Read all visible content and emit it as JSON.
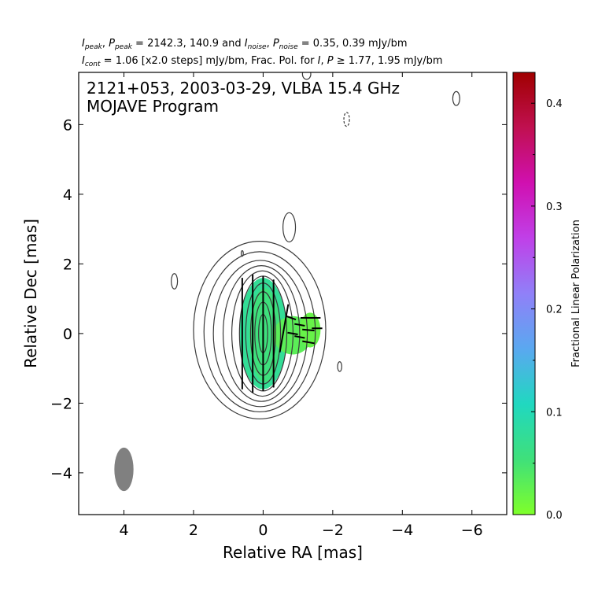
{
  "header": {
    "line1": {
      "i_peak_sym": "I",
      "i_peak_sub": "peak",
      "p_peak_sym": "P",
      "p_peak_sub": "peak",
      "peak_vals": " = 2142.3, 140.9 and ",
      "i_noise_sym": "I",
      "i_noise_sub": "noise",
      "p_noise_sym": "P",
      "p_noise_sub": "noise",
      "noise_vals": " = 0.35, 0.39 mJy/bm"
    },
    "line2": {
      "i_cont_sym": "I",
      "i_cont_sub": "cont",
      "cont_text": " = 1.06 [x2.0 steps] mJy/bm, Frac. Pol. for ",
      "i_sym": "I",
      "p_sym": "P",
      "thresh_text": " ≥  1.77, 1.95 mJy/bm"
    }
  },
  "chart_data": {
    "type": "contour",
    "title_lines": [
      "2121+053, 2003-03-29, VLBA 15.4 GHz",
      "MOJAVE Program"
    ],
    "xlabel": "Relative RA [mas]",
    "ylabel": "Relative Dec [mas]",
    "xlim": [
      5.3,
      -7.0
    ],
    "ylim": [
      -5.2,
      7.5
    ],
    "xticks": [
      4,
      2,
      0,
      -2,
      -4,
      -6
    ],
    "yticks": [
      -4,
      -2,
      0,
      2,
      4,
      6
    ],
    "xtick_labels": [
      "4",
      "2",
      "0",
      "−2",
      "−4",
      "−6"
    ],
    "ytick_labels": [
      "−4",
      "−2",
      "0",
      "2",
      "4",
      "6"
    ],
    "contour_color": "#3a3a3a",
    "contours": [
      {
        "cx": 0.1,
        "cy": 0.1,
        "rx": 1.9,
        "ry": 2.55
      },
      {
        "cx": 0.1,
        "cy": 0.05,
        "rx": 1.6,
        "ry": 2.3
      },
      {
        "cx": 0.08,
        "cy": 0.0,
        "rx": 1.35,
        "ry": 2.1
      },
      {
        "cx": 0.05,
        "cy": 0.0,
        "rx": 1.1,
        "ry": 1.95
      },
      {
        "cx": 0.02,
        "cy": 0.0,
        "rx": 0.88,
        "ry": 1.8
      },
      {
        "cx": 0.0,
        "cy": 0.0,
        "rx": 0.68,
        "ry": 1.65
      },
      {
        "cx": 0.0,
        "cy": 0.0,
        "rx": 0.5,
        "ry": 1.45
      },
      {
        "cx": 0.0,
        "cy": 0.0,
        "rx": 0.36,
        "ry": 1.2
      },
      {
        "cx": 0.0,
        "cy": 0.0,
        "rx": 0.24,
        "ry": 0.9
      },
      {
        "cx": 0.0,
        "cy": 0.0,
        "rx": 0.13,
        "ry": 0.55
      }
    ],
    "noise_contours": [
      {
        "cx": -0.75,
        "cy": 3.05,
        "rx": 0.18,
        "ry": 0.42,
        "dashed": false
      },
      {
        "cx": 2.55,
        "cy": 1.5,
        "rx": 0.09,
        "ry": 0.22,
        "dashed": false
      },
      {
        "cx": 0.6,
        "cy": 2.3,
        "rx": 0.03,
        "ry": 0.08,
        "dashed": false
      },
      {
        "cx": -5.55,
        "cy": 6.75,
        "rx": 0.1,
        "ry": 0.2,
        "dashed": false
      },
      {
        "cx": -2.4,
        "cy": 6.15,
        "rx": 0.08,
        "ry": 0.2,
        "dashed": true
      },
      {
        "cx": -2.2,
        "cy": -0.95,
        "rx": 0.06,
        "ry": 0.14,
        "dashed": false
      },
      {
        "cx": -1.25,
        "cy": 7.45,
        "rx": 0.12,
        "ry": 0.15,
        "dashed": false
      }
    ],
    "polarization_regions": [
      {
        "cx": 0.0,
        "cy": 0.0,
        "rx": 0.68,
        "ry": 1.6,
        "frac": 0.075
      },
      {
        "cx": -0.05,
        "cy": -0.05,
        "rx": 0.45,
        "ry": 1.35,
        "frac": 0.055
      },
      {
        "cx": -0.85,
        "cy": -0.05,
        "rx": 0.55,
        "ry": 0.55,
        "frac": 0.03
      },
      {
        "cx": -1.35,
        "cy": 0.1,
        "rx": 0.3,
        "ry": 0.5,
        "frac": 0.02
      }
    ],
    "evpa_vectors": [
      {
        "x": 0.6,
        "y": 0.0,
        "len": 3.2,
        "angle": 0
      },
      {
        "x": 0.3,
        "y": 0.0,
        "len": 3.4,
        "angle": 0
      },
      {
        "x": 0.0,
        "y": 0.0,
        "len": 3.3,
        "angle": 0
      },
      {
        "x": -0.3,
        "y": 0.0,
        "len": 3.1,
        "angle": 0
      },
      {
        "x": -0.6,
        "y": 0.15,
        "len": 1.4,
        "angle": -10
      },
      {
        "x": -0.8,
        "y": 0.45,
        "len": 0.3,
        "angle": 70
      },
      {
        "x": -0.85,
        "y": 0.0,
        "len": 0.3,
        "angle": 80
      },
      {
        "x": -1.05,
        "y": 0.25,
        "len": 0.3,
        "angle": 80
      },
      {
        "x": -1.05,
        "y": -0.1,
        "len": 0.3,
        "angle": 80
      },
      {
        "x": -1.25,
        "y": 0.45,
        "len": 0.35,
        "angle": 90
      },
      {
        "x": -1.3,
        "y": 0.1,
        "len": 0.35,
        "angle": 85
      },
      {
        "x": -1.3,
        "y": -0.25,
        "len": 0.35,
        "angle": 80
      },
      {
        "x": -1.5,
        "y": 0.45,
        "len": 0.3,
        "angle": 90
      },
      {
        "x": -1.55,
        "y": 0.15,
        "len": 0.3,
        "angle": 90
      }
    ],
    "beam": {
      "x": 4.0,
      "y": -3.9,
      "major": 1.25,
      "minor": 0.55,
      "pa": 0,
      "color": "#808080"
    },
    "colorbar": {
      "label": "Fractional Linear Polarization",
      "vmin": 0.0,
      "vmax": 0.43,
      "ticks": [
        0.0,
        0.1,
        0.2,
        0.3,
        0.4
      ],
      "tick_labels": [
        "0.0",
        "0.1",
        "0.2",
        "0.3",
        "0.4"
      ],
      "colors": [
        "#7fff2a",
        "#3fe07a",
        "#20d8c0",
        "#5aa8f0",
        "#9080f8",
        "#c040e8",
        "#d010b0",
        "#c01050",
        "#a00000"
      ]
    }
  }
}
